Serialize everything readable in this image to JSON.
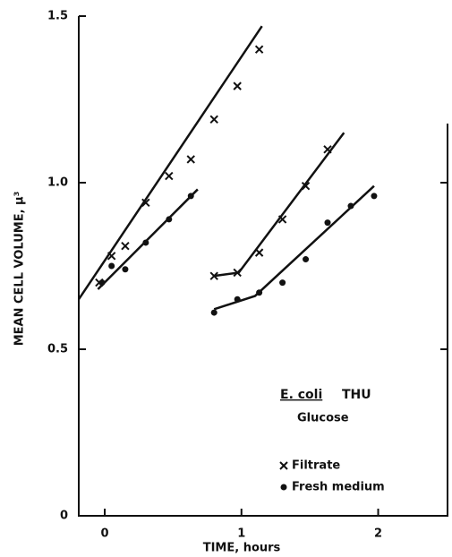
{
  "chart_data": {
    "type": "scatter",
    "x_label": "TIME, hours",
    "y_label": "MEAN CELL VOLUME, μ³",
    "organism": "E. coli",
    "strain": "THU",
    "medium": "Glucose",
    "xlim": [
      -0.19,
      2.54
    ],
    "ylim": [
      0,
      1.5
    ],
    "xticks": [
      0,
      1,
      2
    ],
    "yticks": [
      0,
      0.5,
      {
        "value": 1,
        "label": "1.0"
      },
      1.5
    ],
    "series": [
      {
        "name": "Filtrate",
        "marker": "x",
        "color": "#111",
        "x": [
          -0.04,
          0.05,
          0.15,
          0.3,
          0.47,
          0.63,
          0.8,
          0.97,
          1.13,
          0.8,
          0.97,
          1.13,
          1.3,
          1.47,
          1.63
        ],
        "values": [
          0.7,
          0.78,
          0.81,
          0.94,
          1.02,
          1.07,
          1.19,
          1.29,
          1.4,
          0.72,
          0.73,
          0.79,
          0.89,
          0.99,
          1.1
        ]
      },
      {
        "name": "Fresh medium",
        "marker": "dot",
        "color": "#111",
        "x": [
          -0.02,
          0.05,
          0.15,
          0.3,
          0.47,
          0.63,
          0.8,
          0.97,
          1.13,
          1.3,
          1.47,
          1.63,
          1.8,
          1.97
        ],
        "values": [
          0.7,
          0.75,
          0.74,
          0.82,
          0.89,
          0.96,
          0.61,
          0.65,
          0.67,
          0.7,
          0.77,
          0.88,
          0.93,
          0.96
        ]
      }
    ],
    "fit_lines": [
      {
        "x": [
          -0.19,
          1.15
        ],
        "values": [
          0.65,
          1.47
        ]
      },
      {
        "x": [
          -0.05,
          0.68
        ],
        "values": [
          0.68,
          0.98
        ]
      },
      {
        "x": [
          0.8,
          0.98,
          1.75
        ],
        "values": [
          0.72,
          0.73,
          1.15
        ]
      },
      {
        "x": [
          0.8,
          1.1,
          1.97
        ],
        "values": [
          0.62,
          0.66,
          0.99
        ]
      }
    ]
  }
}
